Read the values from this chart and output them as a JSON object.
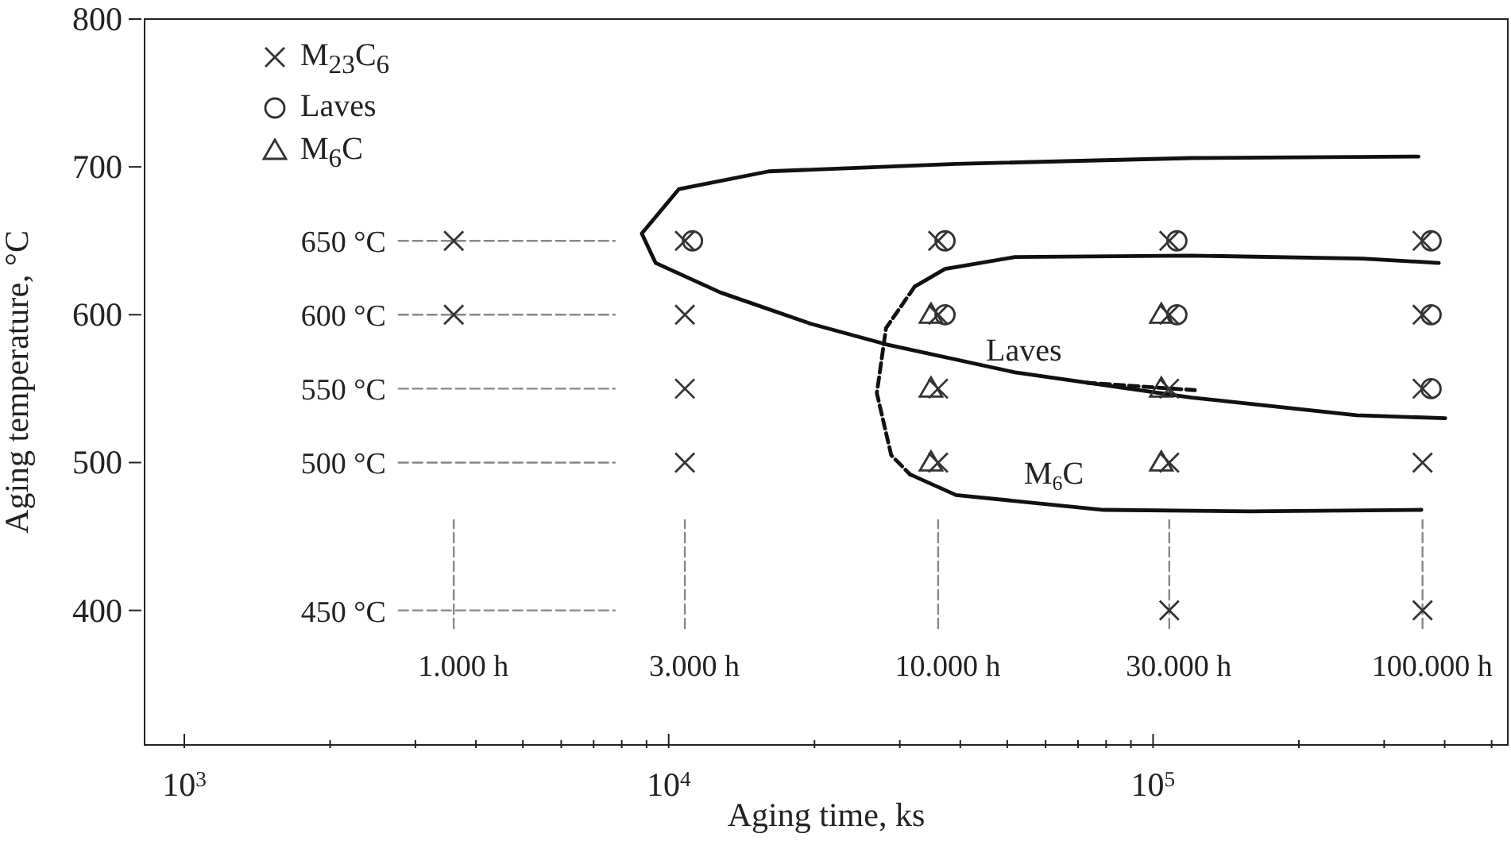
{
  "chart_data": {
    "type": "scatter",
    "xlabel": "Aging time, ks",
    "ylabel": "Aging temperature, °C",
    "log": "x",
    "xlim": [
      828,
      540000
    ],
    "ylim": [
      309,
      800
    ],
    "xticks": [
      {
        "value": 1000,
        "label": "10$^{3}$"
      },
      {
        "value": 2000,
        "label": null
      },
      {
        "value": 3000,
        "label": null
      },
      {
        "value": 4000,
        "label": null
      },
      {
        "value": 5000,
        "label": null
      },
      {
        "value": 6000,
        "label": null
      },
      {
        "value": 7000,
        "label": null
      },
      {
        "value": 8000,
        "label": null
      },
      {
        "value": 9000,
        "label": null
      },
      {
        "value": 10000,
        "label": "10$^{4}$"
      },
      {
        "value": 20000,
        "label": null
      },
      {
        "value": 30000,
        "label": null
      },
      {
        "value": 40000,
        "label": null
      },
      {
        "value": 50000,
        "label": null
      },
      {
        "value": 60000,
        "label": null
      },
      {
        "value": 70000,
        "label": null
      },
      {
        "value": 80000,
        "label": null
      },
      {
        "value": 90000,
        "label": null
      },
      {
        "value": 100000,
        "label": "10$^{5}$"
      },
      {
        "value": 200000,
        "label": null
      },
      {
        "value": 300000,
        "label": null
      },
      {
        "value": 400000,
        "label": null
      },
      {
        "value": 500000,
        "label": null
      }
    ],
    "yticks": [
      400,
      500,
      600,
      700,
      800
    ],
    "legend": "top left",
    "series": [
      {
        "name": "M$_{23}$C$_{6}$",
        "marker": "cross",
        "color": "#333333",
        "x": [
          3600,
          3600,
          10800,
          10800,
          10800,
          10800,
          36000,
          36000,
          36000,
          36000,
          108000,
          108000,
          108000,
          108000,
          108000,
          360000,
          360000,
          360000,
          360000,
          360000
        ],
        "values": [
          650,
          600,
          650,
          600,
          550,
          500,
          650,
          600,
          550,
          500,
          650,
          600,
          550,
          500,
          400,
          650,
          600,
          550,
          500,
          400
        ]
      },
      {
        "name": "Laves",
        "marker": "circle",
        "color": "#333333",
        "x": [
          11200,
          37200,
          37200,
          112000,
          112000,
          375000,
          375000,
          375000
        ],
        "values": [
          650,
          650,
          600,
          650,
          600,
          650,
          600,
          550
        ]
      },
      {
        "name": "M$_{6}$C",
        "marker": "triangle",
        "color": "#333333",
        "x": [
          34800,
          34800,
          34800,
          104000,
          104000,
          104000
        ],
        "values": [
          600,
          550,
          500,
          600,
          550,
          500
        ]
      },
      {
        "type": "line",
        "color": "#111111",
        "line_style": "solid",
        "x": [
          353000,
          120000,
          39200,
          16100,
          10500,
          8800,
          9400,
          12800,
          19600,
          28100,
          51900,
          120000,
          263000,
          401000
        ],
        "values": [
          707,
          706,
          702,
          697,
          685,
          655,
          635,
          615,
          594,
          580,
          561,
          544,
          532,
          530
        ]
      },
      {
        "type": "line",
        "color": "#111111",
        "line_style": "solid",
        "x": [
          389000,
          271000,
          120000,
          51900,
          37200,
          32200
        ],
        "values": [
          635,
          638,
          640,
          639,
          631,
          619
        ]
      },
      {
        "type": "line",
        "color": "#111111",
        "line_style": "dashed",
        "x": [
          32200,
          28100,
          26900,
          28800,
          31500
        ],
        "values": [
          619,
          591,
          547,
          505,
          492
        ]
      },
      {
        "type": "line",
        "color": "#111111",
        "line_style": "solid",
        "x": [
          31500,
          39200,
          79100,
          158000,
          358000
        ],
        "values": [
          492,
          478,
          468,
          467,
          468
        ]
      },
      {
        "type": "line",
        "color": "#111111",
        "line_style": "dashed",
        "x": [
          72800,
          122000
        ],
        "values": [
          554,
          549
        ]
      },
      {
        "type": "line",
        "color": "#888888",
        "line_style": "dashed",
        "x": [
          2770,
          7740
        ],
        "values": [
          650,
          650
        ]
      },
      {
        "type": "line",
        "color": "#888888",
        "line_style": "dashed",
        "x": [
          2770,
          7740
        ],
        "values": [
          600,
          600
        ]
      },
      {
        "type": "line",
        "color": "#888888",
        "line_style": "dashed",
        "x": [
          2770,
          7740
        ],
        "values": [
          550,
          550
        ]
      },
      {
        "type": "line",
        "color": "#888888",
        "line_style": "dashed",
        "x": [
          2770,
          7740
        ],
        "values": [
          500,
          500
        ]
      },
      {
        "type": "line",
        "color": "#888888",
        "line_style": "dashed",
        "x": [
          2770,
          7740
        ],
        "values": [
          400,
          400
        ]
      },
      {
        "type": "line",
        "color": "#888888",
        "line_style": "dashed",
        "x": [
          3600,
          3600
        ],
        "values": [
          388,
          461
        ]
      },
      {
        "type": "line",
        "color": "#888888",
        "line_style": "dashed",
        "x": [
          10800,
          10800
        ],
        "values": [
          388,
          461
        ]
      },
      {
        "type": "line",
        "color": "#888888",
        "line_style": "dashed",
        "x": [
          36000,
          36000
        ],
        "values": [
          388,
          461
        ]
      },
      {
        "type": "line",
        "color": "#888888",
        "line_style": "dashed",
        "x": [
          108000,
          108000
        ],
        "values": [
          388,
          461
        ]
      },
      {
        "type": "line",
        "color": "#888888",
        "line_style": "dashed",
        "x": [
          360000,
          360000
        ],
        "values": [
          388,
          461
        ]
      }
    ],
    "annotations": [
      {
        "text": "650 °C",
        "x": 2770,
        "y": 650
      },
      {
        "text": "600 °C",
        "x": 2770,
        "y": 600
      },
      {
        "text": "550 °C",
        "x": 2770,
        "y": 550
      },
      {
        "text": "500 °C",
        "x": 2770,
        "y": 500
      },
      {
        "text": "450 °C",
        "x": 2770,
        "y": 400
      },
      {
        "text": "1.000 h",
        "x": 3600,
        "y": 388
      },
      {
        "text": "3.000 h",
        "x": 10800,
        "y": 388
      },
      {
        "text": "10.000 h",
        "x": 36000,
        "y": 388
      },
      {
        "text": "30.000 h",
        "x": 108000,
        "y": 388
      },
      {
        "text": "100.000 h",
        "x": 360000,
        "y": 388
      },
      "Laves",
      "M$_{6}$C"
    ]
  }
}
